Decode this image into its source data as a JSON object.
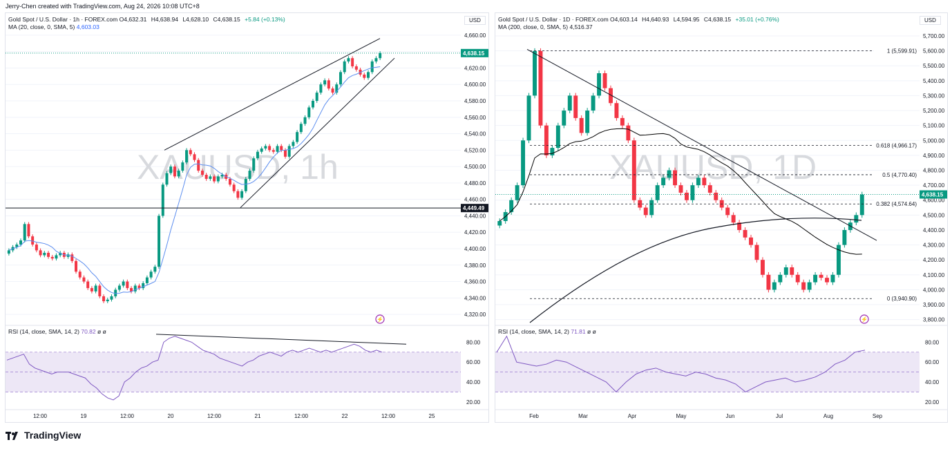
{
  "credit": "Jerry-Chen created with TradingView.com, Aug 24, 2026 10:08 UTC+8",
  "brand": "TradingView",
  "colors": {
    "up": "#089981",
    "down": "#f23645",
    "ma_h": "#5b8def",
    "ma_d": "#000000",
    "rsi": "#7e57c2",
    "rsi_band": "#ede7f6",
    "grid": "#f0f3fa",
    "price_tag": "#089981"
  },
  "left": {
    "symbol": "Gold Spot / U.S. Dollar · 1h · FOREX.com",
    "ohlc": {
      "o": "O4,632.31",
      "h": "H4,638.94",
      "l": "L4,628.10",
      "c": "C4,638.15",
      "chg": "+5.84 (+0.13%)"
    },
    "ma_label": "MA (20, close, 0, SMA, 5)",
    "ma_value": "4,603.03",
    "currency": "USD",
    "watermark": "XAUUSD, 1h",
    "rsi_label": "RSI (14, close, SMA, 14, 2)",
    "rsi_value": "70.82",
    "rsi_extra": "ø ø",
    "last_price": "4,638.15",
    "hline_label": "4,449.49",
    "y_ticks": [
      "4,660.00",
      "4,640.00",
      "4,620.00",
      "4,600.00",
      "4,580.00",
      "4,560.00",
      "4,540.00",
      "4,520.00",
      "4,500.00",
      "4,480.00",
      "4,460.00",
      "4,440.00",
      "4,420.00",
      "4,400.00",
      "4,380.00",
      "4,360.00",
      "4,340.00",
      "4,320.00"
    ],
    "rsi_ticks": [
      "80.00",
      "60.00",
      "40.00",
      "20.00"
    ],
    "x_ticks": [
      "12:00",
      "19",
      "12:00",
      "20",
      "12:00",
      "21",
      "12:00",
      "22",
      "12:00",
      "25"
    ]
  },
  "right": {
    "symbol": "Gold Spot / U.S. Dollar · 1D · FOREX.com",
    "ohlc": {
      "o": "O4,603.14",
      "h": "H4,640.93",
      "l": "L4,594.95",
      "c": "C4,638.15",
      "chg": "+35.01 (+0.76%)"
    },
    "ma_label": "MA (200, close, 0, SMA, 5)",
    "ma_value": "4,516.37",
    "currency": "USD",
    "watermark": "XAUUSD, 1D",
    "rsi_label": "RSI (14, close, SMA, 14, 2)",
    "rsi_value": "71.81",
    "rsi_extra": "ø ø",
    "last_price": "4,638.15",
    "fib": [
      {
        "label": "1 (5,599.91)",
        "value": 5599.91
      },
      {
        "label": "0.618 (4,966.17)",
        "value": 4966.17
      },
      {
        "label": "0.5 (4,770.40)",
        "value": 4770.4
      },
      {
        "label": "0.382 (4,574.64)",
        "value": 4574.64
      },
      {
        "label": "0 (3,940.90)",
        "value": 3940.9
      }
    ],
    "y_ticks": [
      "5,700.00",
      "5,600.00",
      "5,500.00",
      "5,400.00",
      "5,300.00",
      "5,200.00",
      "5,100.00",
      "5,000.00",
      "4,900.00",
      "4,800.00",
      "4,700.00",
      "4,600.00",
      "4,500.00",
      "4,400.00",
      "4,300.00",
      "4,200.00",
      "4,100.00",
      "4,000.00",
      "3,900.00",
      "3,800.00"
    ],
    "rsi_ticks": [
      "80.00",
      "60.00",
      "40.00",
      "20.00"
    ],
    "x_ticks": [
      "Feb",
      "Mar",
      "Apr",
      "May",
      "Jun",
      "Jul",
      "Aug",
      "Sep"
    ]
  },
  "chart_data": [
    {
      "type": "candlestick",
      "title": "Gold Spot / U.S. Dollar · 1h · FOREX.com",
      "ylim": [
        4310,
        4670
      ],
      "series_close": [
        4398,
        4402,
        4405,
        4410,
        4430,
        4415,
        4405,
        4398,
        4392,
        4395,
        4390,
        4388,
        4392,
        4395,
        4390,
        4393,
        4385,
        4372,
        4365,
        4360,
        4352,
        4348,
        4355,
        4342,
        4336,
        4338,
        4342,
        4350,
        4355,
        4360,
        4352,
        4348,
        4355,
        4352,
        4358,
        4365,
        4372,
        4378,
        4440,
        4478,
        4492,
        4500,
        4488,
        4495,
        4505,
        4520,
        4515,
        4508,
        4495,
        4490,
        4485,
        4488,
        4482,
        4488,
        4490,
        4485,
        4478,
        4470,
        4462,
        4470,
        4485,
        4495,
        4510,
        4518,
        4522,
        4525,
        4520,
        4518,
        4525,
        4520,
        4512,
        4525,
        4530,
        4542,
        4552,
        4560,
        4572,
        4580,
        4590,
        4600,
        4605,
        4595,
        4590,
        4600,
        4615,
        4628,
        4632,
        4622,
        4618,
        4612,
        4608,
        4615,
        4628,
        4632,
        4638
      ],
      "hline": 4449.49,
      "rsi_series": [
        62,
        64,
        66,
        68,
        58,
        54,
        52,
        50,
        48,
        50,
        50,
        50,
        48,
        46,
        44,
        38,
        34,
        28,
        24,
        22,
        26,
        40,
        44,
        50,
        54,
        56,
        60,
        62,
        80,
        84,
        86,
        84,
        82,
        80,
        76,
        72,
        70,
        68,
        64,
        62,
        60,
        58,
        56,
        60,
        62,
        66,
        68,
        70,
        68,
        66,
        70,
        72,
        70,
        72,
        74,
        72,
        70,
        72,
        70,
        72,
        74,
        76,
        78,
        76,
        72,
        70,
        72,
        70
      ]
    },
    {
      "type": "candlestick",
      "title": "Gold Spot / U.S. Dollar · 1D · FOREX.com",
      "ylim": [
        3780,
        5760
      ],
      "series_close": [
        4460,
        4520,
        4600,
        4700,
        5000,
        5300,
        5599,
        5100,
        4900,
        4950,
        5100,
        5200,
        5300,
        5150,
        5050,
        5200,
        5300,
        5450,
        5350,
        5250,
        5150,
        5100,
        5000,
        4600,
        4550,
        4500,
        4600,
        4700,
        4750,
        4800,
        4700,
        4650,
        4600,
        4700,
        4750,
        4700,
        4650,
        4600,
        4550,
        4500,
        4450,
        4400,
        4350,
        4300,
        4200,
        4100,
        4000,
        4050,
        4100,
        4150,
        4100,
        4050,
        4000,
        4050,
        4100,
        4080,
        4050,
        4100,
        4300,
        4400,
        4450,
        4500,
        4638
      ],
      "ma200": 4516.37,
      "rsi_series": [
        70,
        86,
        60,
        58,
        56,
        58,
        62,
        60,
        55,
        50,
        45,
        40,
        30,
        40,
        48,
        52,
        54,
        50,
        48,
        46,
        50,
        48,
        44,
        42,
        38,
        30,
        35,
        40,
        42,
        44,
        40,
        42,
        45,
        50,
        58,
        62,
        70,
        72
      ]
    }
  ]
}
